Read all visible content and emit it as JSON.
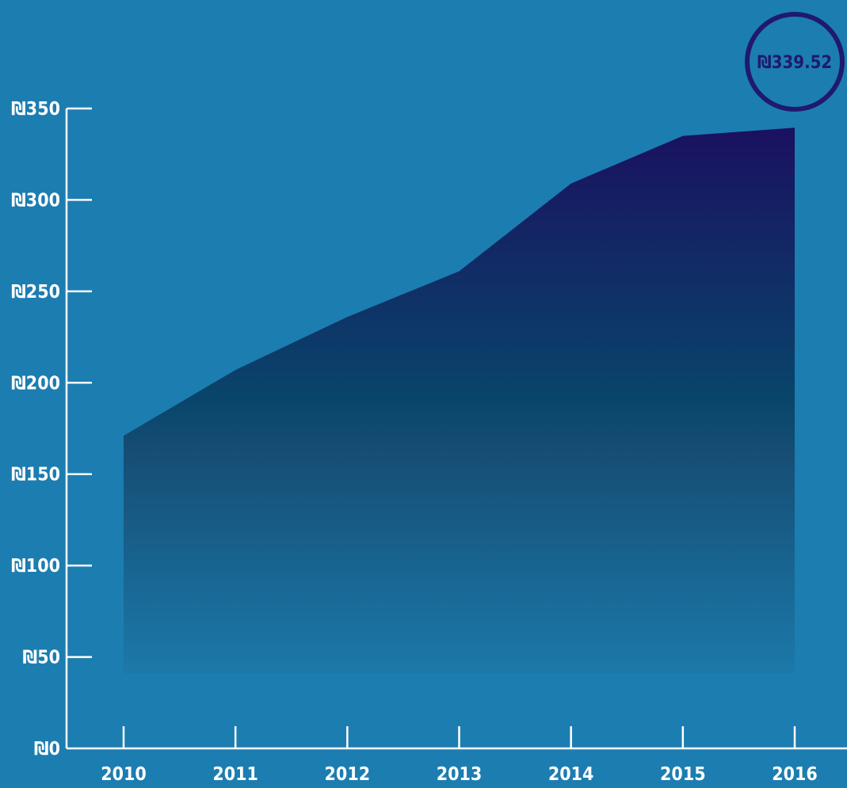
{
  "colors": {
    "background": "#1c7db0",
    "area_top": "#1a1160",
    "area_mid": "#09456b",
    "axis": "#ffffff",
    "callout": "#1f1a6e"
  },
  "chart_data": {
    "type": "area",
    "title": "",
    "xlabel": "",
    "ylabel": "",
    "categories": [
      "2010",
      "2011",
      "2012",
      "2013",
      "2014",
      "2015",
      "2016"
    ],
    "values": [
      171,
      207,
      236,
      261,
      309,
      335,
      339.52
    ],
    "ylim": [
      0,
      350
    ],
    "yticks": [
      0,
      50,
      100,
      150,
      200,
      250,
      300,
      350
    ],
    "ytick_labels": [
      "₪0",
      "₪50",
      "₪100",
      "₪150",
      "₪200",
      "₪250",
      "₪300",
      "₪350"
    ],
    "grid": false,
    "legend": "none",
    "callout": {
      "label": "₪339.52",
      "category": "2016"
    }
  }
}
